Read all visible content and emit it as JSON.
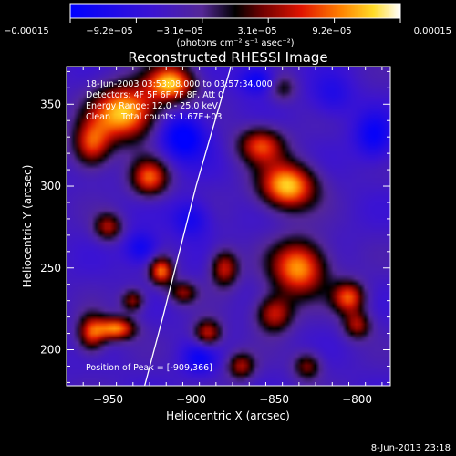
{
  "chart_data": {
    "type": "heatmap",
    "title": "Reconstructed RHESSI Image",
    "xlabel": "Heliocentric X (arcsec)",
    "ylabel": "Heliocentric Y (arcsec)",
    "xlim": [
      -975,
      -780
    ],
    "ylim": [
      178,
      373
    ],
    "x_ticks": [
      -950,
      -900,
      -850,
      -800
    ],
    "x_tick_labels": [
      "−950",
      "−900",
      "−850",
      "−800"
    ],
    "y_ticks": [
      200,
      250,
      300,
      350
    ],
    "y_tick_labels": [
      "200",
      "250",
      "300",
      "350"
    ],
    "colorbar": {
      "min": -0.00015,
      "max": 0.00015,
      "tick_labels": [
        "−0.00015",
        "−9.2e−05",
        "−3.1e−05",
        "3.1e−05",
        "9.2e−05",
        "0.00015"
      ],
      "unit_label": "(photons cm⁻² s⁻¹ asec⁻²)"
    },
    "annotations": {
      "time_range": "18-Jun-2003 03:53:08.000 to 03:57:34.000",
      "detectors": "Detectors: 4F 5F 6F 7F 8F, Att 0",
      "energy_range": "Energy Range: 12.0 - 25.0 keV",
      "clean_counts": "Clean    Total counts: 1.67E+03",
      "peak": "Position of Peak = [-909,366]"
    },
    "limb_curve": [
      [
        -928,
        178
      ],
      [
        -917,
        220
      ],
      [
        -907,
        260
      ],
      [
        -897,
        300
      ],
      [
        -887,
        335
      ],
      [
        -876,
        373
      ]
    ],
    "sources": [
      {
        "x": -940,
        "y": 345,
        "amp": 1.0,
        "sx": 14,
        "sy": 12
      },
      {
        "x": -912,
        "y": 363,
        "amp": 0.95,
        "sx": 10,
        "sy": 8
      },
      {
        "x": -960,
        "y": 325,
        "amp": 0.7,
        "sx": 8,
        "sy": 10
      },
      {
        "x": -925,
        "y": 305,
        "amp": 0.75,
        "sx": 8,
        "sy": 8
      },
      {
        "x": -950,
        "y": 275,
        "amp": 0.55,
        "sx": 6,
        "sy": 6
      },
      {
        "x": -918,
        "y": 248,
        "amp": 0.8,
        "sx": 5,
        "sy": 6
      },
      {
        "x": -935,
        "y": 230,
        "amp": 0.55,
        "sx": 5,
        "sy": 5
      },
      {
        "x": -945,
        "y": 213,
        "amp": 0.85,
        "sx": 8,
        "sy": 5
      },
      {
        "x": -960,
        "y": 210,
        "amp": 0.7,
        "sx": 6,
        "sy": 8
      },
      {
        "x": -890,
        "y": 210,
        "amp": 0.65,
        "sx": 6,
        "sy": 6
      },
      {
        "x": -905,
        "y": 235,
        "amp": 0.5,
        "sx": 6,
        "sy": 5
      },
      {
        "x": -880,
        "y": 250,
        "amp": 0.65,
        "sx": 6,
        "sy": 8
      },
      {
        "x": -842,
        "y": 300,
        "amp": 1.0,
        "sx": 12,
        "sy": 10
      },
      {
        "x": -858,
        "y": 325,
        "amp": 0.7,
        "sx": 10,
        "sy": 8
      },
      {
        "x": -835,
        "y": 250,
        "amp": 0.9,
        "sx": 12,
        "sy": 12
      },
      {
        "x": -850,
        "y": 222,
        "amp": 0.65,
        "sx": 8,
        "sy": 8
      },
      {
        "x": -805,
        "y": 232,
        "amp": 0.75,
        "sx": 7,
        "sy": 7
      },
      {
        "x": -800,
        "y": 215,
        "amp": 0.55,
        "sx": 6,
        "sy": 6
      },
      {
        "x": -870,
        "y": 190,
        "amp": 0.55,
        "sx": 6,
        "sy": 6
      },
      {
        "x": -830,
        "y": 190,
        "amp": 0.5,
        "sx": 6,
        "sy": 6
      },
      {
        "x": -845,
        "y": 360,
        "amp": 0.35,
        "sx": 6,
        "sy": 6
      },
      {
        "x": -790,
        "y": 330,
        "amp": -0.4,
        "sx": 8,
        "sy": 10
      },
      {
        "x": -905,
        "y": 330,
        "amp": -0.55,
        "sx": 10,
        "sy": 10
      },
      {
        "x": -900,
        "y": 280,
        "amp": -0.35,
        "sx": 8,
        "sy": 8
      },
      {
        "x": -860,
        "y": 365,
        "amp": -0.45,
        "sx": 8,
        "sy": 6
      },
      {
        "x": -930,
        "y": 262,
        "amp": -0.4,
        "sx": 7,
        "sy": 7
      },
      {
        "x": -895,
        "y": 195,
        "amp": -0.35,
        "sx": 7,
        "sy": 7
      },
      {
        "x": -815,
        "y": 355,
        "amp": -0.25,
        "sx": 9,
        "sy": 9
      }
    ]
  },
  "footer": {
    "timestamp": "8-Jun-2013 23:18"
  }
}
